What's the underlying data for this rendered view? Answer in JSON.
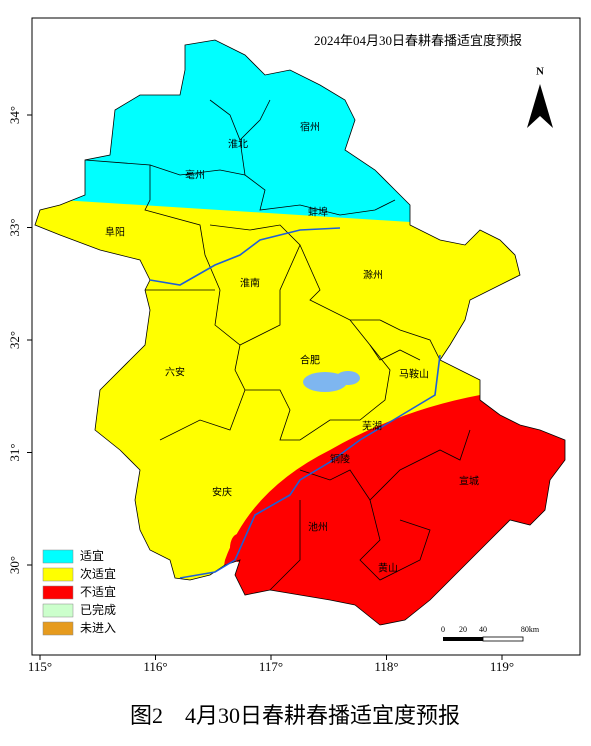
{
  "map": {
    "title": "2024年04月30日春耕春播适宜度预报",
    "north": "N",
    "cities": [
      "宿州",
      "淮北",
      "亳州",
      "蚌埠",
      "阜阳",
      "淮南",
      "滁州",
      "六安",
      "合肥",
      "马鞍山",
      "芜湖",
      "铜陵",
      "安庆",
      "池州",
      "宣城",
      "黄山"
    ],
    "legend": [
      {
        "label": "适宜",
        "color": "#00ffff"
      },
      {
        "label": "次适宜",
        "color": "#ffff00"
      },
      {
        "label": "不适宜",
        "color": "#ff0000"
      },
      {
        "label": "已完成",
        "color": "#ccffcc"
      },
      {
        "label": "未进入",
        "color": "#e69b1e"
      }
    ],
    "scale": [
      "0",
      "20",
      "40",
      "80km"
    ],
    "xticks": [
      {
        "value": 115,
        "label": "115°"
      },
      {
        "value": 116,
        "label": "116°"
      },
      {
        "value": 117,
        "label": "117°"
      },
      {
        "value": 118,
        "label": "118°"
      },
      {
        "value": 119,
        "label": "119°"
      }
    ],
    "yticks": [
      {
        "value": 30,
        "label": "30°"
      },
      {
        "value": 31,
        "label": "31°"
      },
      {
        "value": 32,
        "label": "32°"
      },
      {
        "value": 33,
        "label": "33°"
      },
      {
        "value": 34,
        "label": "34°"
      }
    ]
  },
  "caption": "图2　4月30日春耕春播适宜度预报"
}
